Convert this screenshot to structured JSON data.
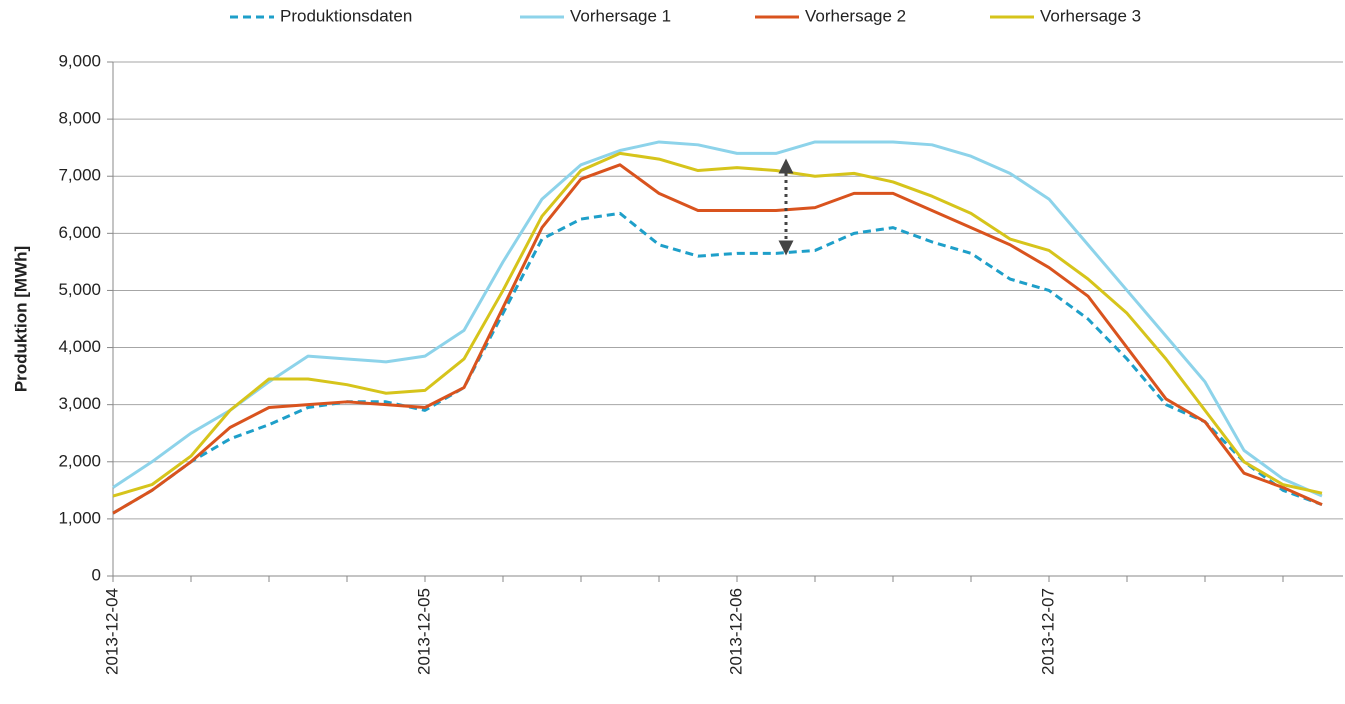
{
  "chart_data": {
    "type": "line",
    "y_label": "Produktion [MWh]",
    "categories": [
      "2013-12-04",
      null,
      null,
      null,
      null,
      null,
      null,
      null,
      "2013-12-05",
      null,
      null,
      null,
      null,
      null,
      null,
      null,
      "2013-12-06",
      null,
      null,
      null,
      null,
      null,
      null,
      null,
      "2013-12-07",
      null,
      null,
      null,
      null,
      null,
      null,
      null
    ],
    "ylim": [
      0,
      9000
    ],
    "yticks": [
      0,
      {
        "value": 1000,
        "label": "1,000"
      },
      {
        "value": 2000,
        "label": "2,000"
      },
      {
        "value": 3000,
        "label": "3,000"
      },
      {
        "value": 4000,
        "label": "4,000"
      },
      {
        "value": 5000,
        "label": "5,000"
      },
      {
        "value": 6000,
        "label": "6,000"
      },
      {
        "value": 7000,
        "label": "7,000"
      },
      {
        "value": 8000,
        "label": "8,000"
      },
      {
        "value": 9000,
        "label": "9,000"
      }
    ],
    "grid": true,
    "legend": "top",
    "series": [
      {
        "name": "Produktionsdaten",
        "color": "#1e9fc9",
        "style": "dashed",
        "values": [
          1100,
          1500,
          2000,
          2400,
          2650,
          2950,
          3050,
          3050,
          2900,
          3300,
          4600,
          5900,
          6250,
          6350,
          5800,
          5600,
          5650,
          5650,
          5700,
          6000,
          6100,
          5850,
          5650,
          5200,
          5000,
          4500,
          3800,
          3000,
          2700,
          2000,
          1500,
          1250
        ]
      },
      {
        "name": "Vorhersage 1",
        "color": "#8dd3ea",
        "style": "solid",
        "values": [
          1550,
          2000,
          2500,
          2900,
          3400,
          3850,
          3800,
          3750,
          3850,
          4300,
          5500,
          6600,
          7200,
          7450,
          7600,
          7550,
          7400,
          7400,
          7600,
          7600,
          7600,
          7550,
          7350,
          7050,
          6600,
          5800,
          5000,
          4200,
          3400,
          2200,
          1700,
          1400
        ]
      },
      {
        "name": "Vorhersage 2",
        "color": "#d9531e",
        "style": "solid",
        "values": [
          1100,
          1500,
          2000,
          2600,
          2950,
          3000,
          3050,
          3000,
          2950,
          3300,
          4700,
          6100,
          6950,
          7200,
          6700,
          6400,
          6400,
          6400,
          6450,
          6700,
          6700,
          6400,
          6100,
          5800,
          5400,
          4900,
          4000,
          3100,
          2700,
          1800,
          1550,
          1250
        ]
      },
      {
        "name": "Vorhersage 3",
        "color": "#d6c41b",
        "style": "solid",
        "values": [
          1400,
          1600,
          2100,
          2900,
          3450,
          3450,
          3350,
          3200,
          3250,
          3800,
          5000,
          6300,
          7100,
          7400,
          7300,
          7100,
          7150,
          7100,
          7000,
          7050,
          6900,
          6650,
          6350,
          5900,
          5700,
          5200,
          4600,
          3800,
          2900,
          2000,
          1600,
          1450
        ]
      }
    ]
  }
}
